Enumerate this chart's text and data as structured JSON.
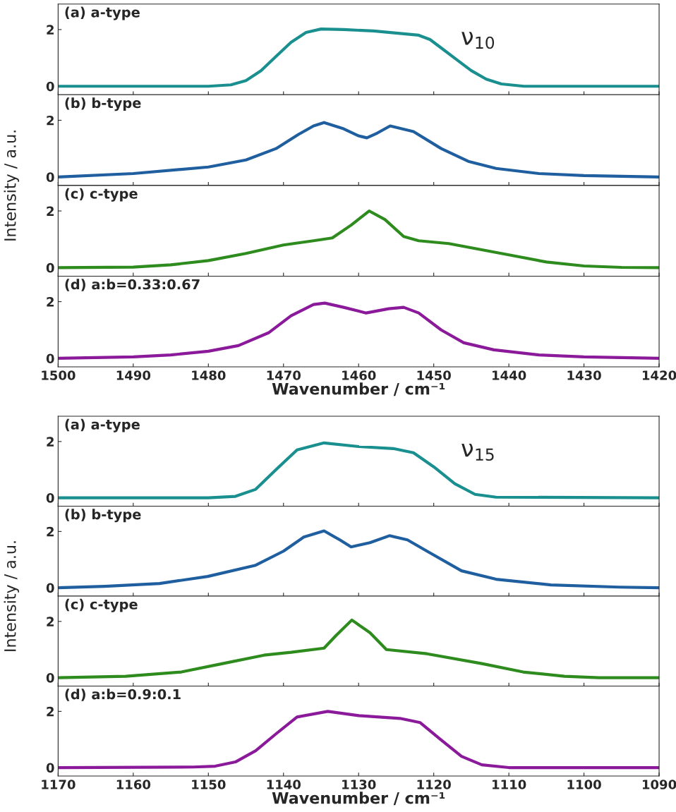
{
  "chart_data": [
    {
      "type": "line",
      "title": "(a) a-type",
      "annotations": [
        "ν$_{10}$"
      ],
      "xlim": [
        1500,
        1420
      ],
      "xticks": [
        1500,
        1490,
        1480,
        1470,
        1460,
        1450,
        1440,
        1430,
        1420
      ],
      "ylim": [
        -0.3,
        2.9
      ],
      "yticks": [
        0,
        2
      ],
      "tick_labels": "y",
      "series": [
        {
          "color": "#1a8f8f",
          "x": [
            1500,
            1480,
            1477,
            1475,
            1473,
            1471,
            1469,
            1467,
            1465,
            1462,
            1458,
            1454,
            1452,
            1450.5,
            1449,
            1447,
            1445,
            1443,
            1441,
            1438,
            1420
          ],
          "values": [
            0,
            0,
            0.05,
            0.2,
            0.55,
            1.05,
            1.55,
            1.9,
            2.02,
            2.0,
            1.95,
            1.85,
            1.8,
            1.65,
            1.35,
            0.95,
            0.55,
            0.25,
            0.08,
            0,
            0
          ]
        }
      ]
    },
    {
      "type": "line",
      "title": "(b) b-type",
      "ylabel": "Intensity / a.u.",
      "xlim": [
        1500,
        1420
      ],
      "xticks": [
        1500,
        1490,
        1480,
        1470,
        1460,
        1450,
        1440,
        1430,
        1420
      ],
      "ylim": [
        -0.3,
        2.9
      ],
      "yticks": [
        0,
        2
      ],
      "tick_labels": "y",
      "series": [
        {
          "color": "#1f5fa0",
          "x": [
            1500,
            1490,
            1480,
            1475,
            1471,
            1468,
            1466,
            1464.6,
            1462,
            1460,
            1458.9,
            1457.5,
            1455.8,
            1452.7,
            1449,
            1445.4,
            1441.7,
            1436,
            1430,
            1420
          ],
          "values": [
            0,
            0.12,
            0.35,
            0.6,
            1.0,
            1.5,
            1.8,
            1.92,
            1.7,
            1.45,
            1.38,
            1.55,
            1.8,
            1.6,
            1.0,
            0.55,
            0.3,
            0.12,
            0.05,
            0
          ]
        }
      ]
    },
    {
      "type": "line",
      "title": "(c) c-type",
      "xlim": [
        1500,
        1420
      ],
      "xticks": [
        1500,
        1490,
        1480,
        1470,
        1460,
        1450,
        1440,
        1430,
        1420
      ],
      "ylim": [
        -0.3,
        2.9
      ],
      "yticks": [
        0,
        2
      ],
      "tick_labels": "y",
      "series": [
        {
          "color": "#2e8b1e",
          "x": [
            1500,
            1490,
            1485,
            1480,
            1475,
            1470,
            1466,
            1463.5,
            1461,
            1458.6,
            1456.5,
            1454,
            1452,
            1448,
            1445,
            1440,
            1435,
            1430,
            1425,
            1420
          ],
          "values": [
            0,
            0.02,
            0.1,
            0.25,
            0.5,
            0.8,
            0.95,
            1.05,
            1.5,
            2.0,
            1.7,
            1.1,
            0.95,
            0.85,
            0.7,
            0.45,
            0.2,
            0.06,
            0.01,
            0
          ]
        }
      ]
    },
    {
      "type": "line",
      "title": "(d) a:b=0.33:0.67",
      "xlabel": "Wavenumber / cm⁻¹",
      "xlim": [
        1500,
        1420
      ],
      "xticks": [
        1500,
        1490,
        1480,
        1470,
        1460,
        1450,
        1440,
        1430,
        1420
      ],
      "ylim": [
        -0.3,
        2.9
      ],
      "yticks": [
        0,
        2
      ],
      "series": [
        {
          "color": "#8b1a9b",
          "x": [
            1500,
            1490,
            1485,
            1480,
            1476,
            1472,
            1469,
            1466,
            1464.5,
            1462,
            1459,
            1456,
            1454,
            1452,
            1449,
            1446,
            1442,
            1436,
            1430,
            1420
          ],
          "values": [
            0,
            0.05,
            0.12,
            0.25,
            0.45,
            0.9,
            1.5,
            1.9,
            1.95,
            1.8,
            1.6,
            1.75,
            1.8,
            1.6,
            1.0,
            0.55,
            0.3,
            0.12,
            0.05,
            0
          ]
        }
      ]
    },
    {
      "type": "line",
      "title": "(a) a-type",
      "annotations": [
        "ν$_{15}$"
      ],
      "xlim": [
        1170,
        1090
      ],
      "xticks": [
        1170,
        1160,
        1150,
        1140,
        1130,
        1120,
        1110,
        1100,
        1090
      ],
      "ylim": [
        -0.3,
        2.9
      ],
      "yticks": [
        0,
        2
      ],
      "tick_labels": "y",
      "series": [
        {
          "color": "#1a8f8f",
          "x": [
            1170,
            1150,
            1146.4,
            1143.7,
            1141,
            1138.2,
            1134.6,
            1130,
            1125.4,
            1122.7,
            1120,
            1117.2,
            1114.5,
            1111.7,
            1090
          ],
          "values": [
            0,
            0,
            0.05,
            0.3,
            1.0,
            1.7,
            1.95,
            1.82,
            1.75,
            1.6,
            1.1,
            0.5,
            0.12,
            0.02,
            0
          ]
        }
      ]
    },
    {
      "type": "line",
      "title": "(b) b-type",
      "ylabel": "Intensity / a.u.",
      "xlim": [
        1170,
        1090
      ],
      "xticks": [
        1170,
        1160,
        1150,
        1140,
        1130,
        1120,
        1110,
        1100,
        1090
      ],
      "ylim": [
        -0.3,
        2.9
      ],
      "yticks": [
        0,
        2
      ],
      "tick_labels": "y",
      "series": [
        {
          "color": "#1f5fa0",
          "x": [
            1170,
            1163.8,
            1156.5,
            1150.1,
            1143.7,
            1140,
            1137.3,
            1134.6,
            1132.5,
            1131,
            1128.5,
            1125.9,
            1123.5,
            1120.9,
            1116.3,
            1111.7,
            1104.4,
            1095.3,
            1090
          ],
          "values": [
            0,
            0.05,
            0.15,
            0.4,
            0.8,
            1.3,
            1.8,
            2.02,
            1.7,
            1.45,
            1.6,
            1.85,
            1.7,
            1.3,
            0.6,
            0.3,
            0.1,
            0.02,
            0
          ]
        }
      ]
    },
    {
      "type": "line",
      "title": "(c) c-type",
      "xlim": [
        1170,
        1090
      ],
      "xticks": [
        1170,
        1160,
        1150,
        1140,
        1130,
        1120,
        1110,
        1100,
        1090
      ],
      "ylim": [
        -0.3,
        2.9
      ],
      "yticks": [
        0,
        2
      ],
      "tick_labels": "y",
      "series": [
        {
          "color": "#2e8b1e",
          "x": [
            1170,
            1161,
            1153.6,
            1148.1,
            1142.6,
            1139,
            1134.6,
            1133,
            1130.9,
            1128.5,
            1126.3,
            1120.9,
            1113.6,
            1108.1,
            1102.6,
            1098,
            1090
          ],
          "values": [
            0,
            0.05,
            0.2,
            0.5,
            0.8,
            0.9,
            1.05,
            1.5,
            2.05,
            1.6,
            1.0,
            0.85,
            0.5,
            0.2,
            0.05,
            0,
            0
          ]
        }
      ]
    },
    {
      "type": "line",
      "title": "(d) a:b=0.9:0.1",
      "xlabel": "Wavenumber / cm⁻¹",
      "xlim": [
        1170,
        1090
      ],
      "xticks": [
        1170,
        1160,
        1150,
        1140,
        1130,
        1120,
        1110,
        1100,
        1090
      ],
      "ylim": [
        -0.3,
        2.9
      ],
      "yticks": [
        0,
        2
      ],
      "series": [
        {
          "color": "#8b1a9b",
          "x": [
            1170,
            1152,
            1149.1,
            1146.4,
            1143.7,
            1141,
            1138.2,
            1134.1,
            1130,
            1124.5,
            1121.8,
            1119.1,
            1116.3,
            1113.6,
            1110,
            1090
          ],
          "values": [
            0,
            0.02,
            0.05,
            0.2,
            0.6,
            1.2,
            1.8,
            2.0,
            1.85,
            1.75,
            1.6,
            1.0,
            0.4,
            0.1,
            0,
            0
          ]
        }
      ]
    }
  ]
}
